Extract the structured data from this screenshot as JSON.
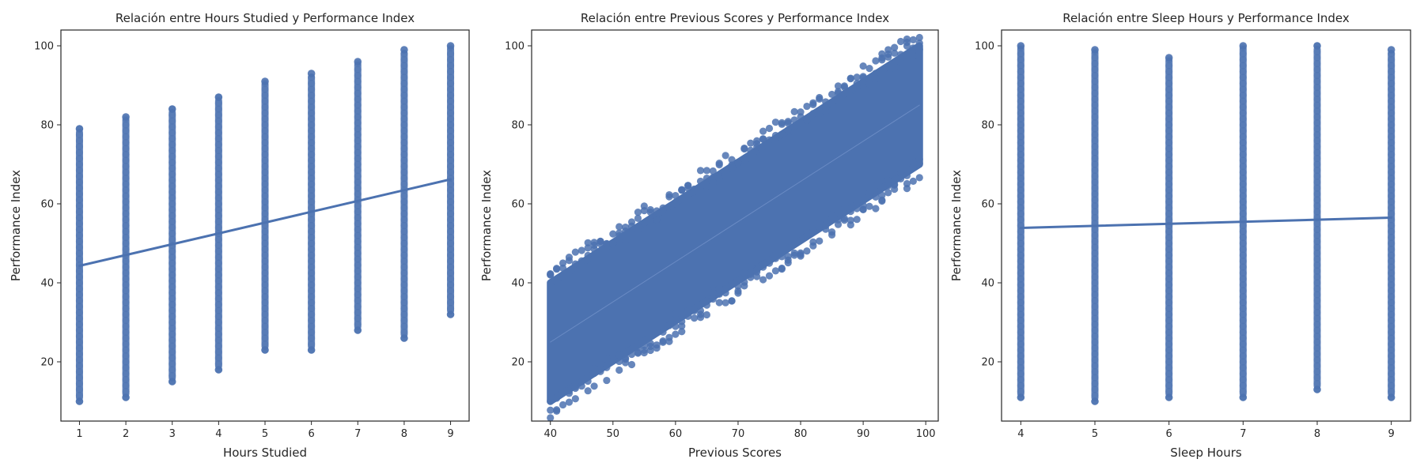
{
  "chart_data": [
    {
      "type": "scatter",
      "title": "Relación entre Hours Studied y Performance Index",
      "xlabel": "Hours Studied",
      "ylabel": "Performance Index",
      "xlim": [
        0.6,
        9.4
      ],
      "ylim": [
        5,
        104
      ],
      "xticks": [
        1,
        2,
        3,
        4,
        5,
        6,
        7,
        8,
        9
      ],
      "yticks": [
        20,
        40,
        60,
        80,
        100
      ],
      "grid": false,
      "marker_color": "#4c72b0",
      "x_is_discrete": true,
      "point_ranges": [
        {
          "x": 1,
          "min": 10,
          "max": 79
        },
        {
          "x": 2,
          "min": 11,
          "max": 82
        },
        {
          "x": 3,
          "min": 15,
          "max": 84
        },
        {
          "x": 4,
          "min": 18,
          "max": 87
        },
        {
          "x": 5,
          "min": 23,
          "max": 91
        },
        {
          "x": 6,
          "min": 23,
          "max": 93
        },
        {
          "x": 7,
          "min": 28,
          "max": 96
        },
        {
          "x": 8,
          "min": 26,
          "max": 99
        },
        {
          "x": 9,
          "min": 32,
          "max": 100
        }
      ],
      "regression_line": {
        "x": [
          1,
          9
        ],
        "y": [
          44.3,
          66.2
        ]
      }
    },
    {
      "type": "scatter",
      "title": "Relación entre Previous Scores y Performance Index",
      "xlabel": "Previous Scores",
      "ylabel": "Performance Index",
      "xlim": [
        37,
        102
      ],
      "ylim": [
        5,
        104
      ],
      "xticks": [
        40,
        50,
        60,
        70,
        80,
        90,
        100
      ],
      "yticks": [
        20,
        40,
        60,
        80,
        100
      ],
      "grid": false,
      "marker_color": "#4c72b0",
      "x_is_discrete": true,
      "band": {
        "x": [
          40,
          99
        ],
        "lower": [
          10,
          70
        ],
        "upper": [
          40,
          100
        ]
      },
      "regression_line": {
        "x": [
          40,
          99
        ],
        "y": [
          25,
          85
        ]
      }
    },
    {
      "type": "scatter",
      "title": "Relación entre Sleep Hours y Performance Index",
      "xlabel": "Sleep Hours",
      "ylabel": "Performance Index",
      "xlim": [
        3.74,
        9.26
      ],
      "ylim": [
        5,
        104
      ],
      "xticks": [
        4,
        5,
        6,
        7,
        8,
        9
      ],
      "yticks": [
        20,
        40,
        60,
        80,
        100
      ],
      "grid": false,
      "marker_color": "#4c72b0",
      "x_is_discrete": true,
      "point_ranges": [
        {
          "x": 4,
          "min": 11,
          "max": 100
        },
        {
          "x": 5,
          "min": 10,
          "max": 99
        },
        {
          "x": 6,
          "min": 11,
          "max": 97
        },
        {
          "x": 7,
          "min": 11,
          "max": 100
        },
        {
          "x": 8,
          "min": 13,
          "max": 100
        },
        {
          "x": 9,
          "min": 11,
          "max": 99
        }
      ],
      "regression_line": {
        "x": [
          4,
          9
        ],
        "y": [
          53.9,
          56.5
        ]
      }
    }
  ]
}
